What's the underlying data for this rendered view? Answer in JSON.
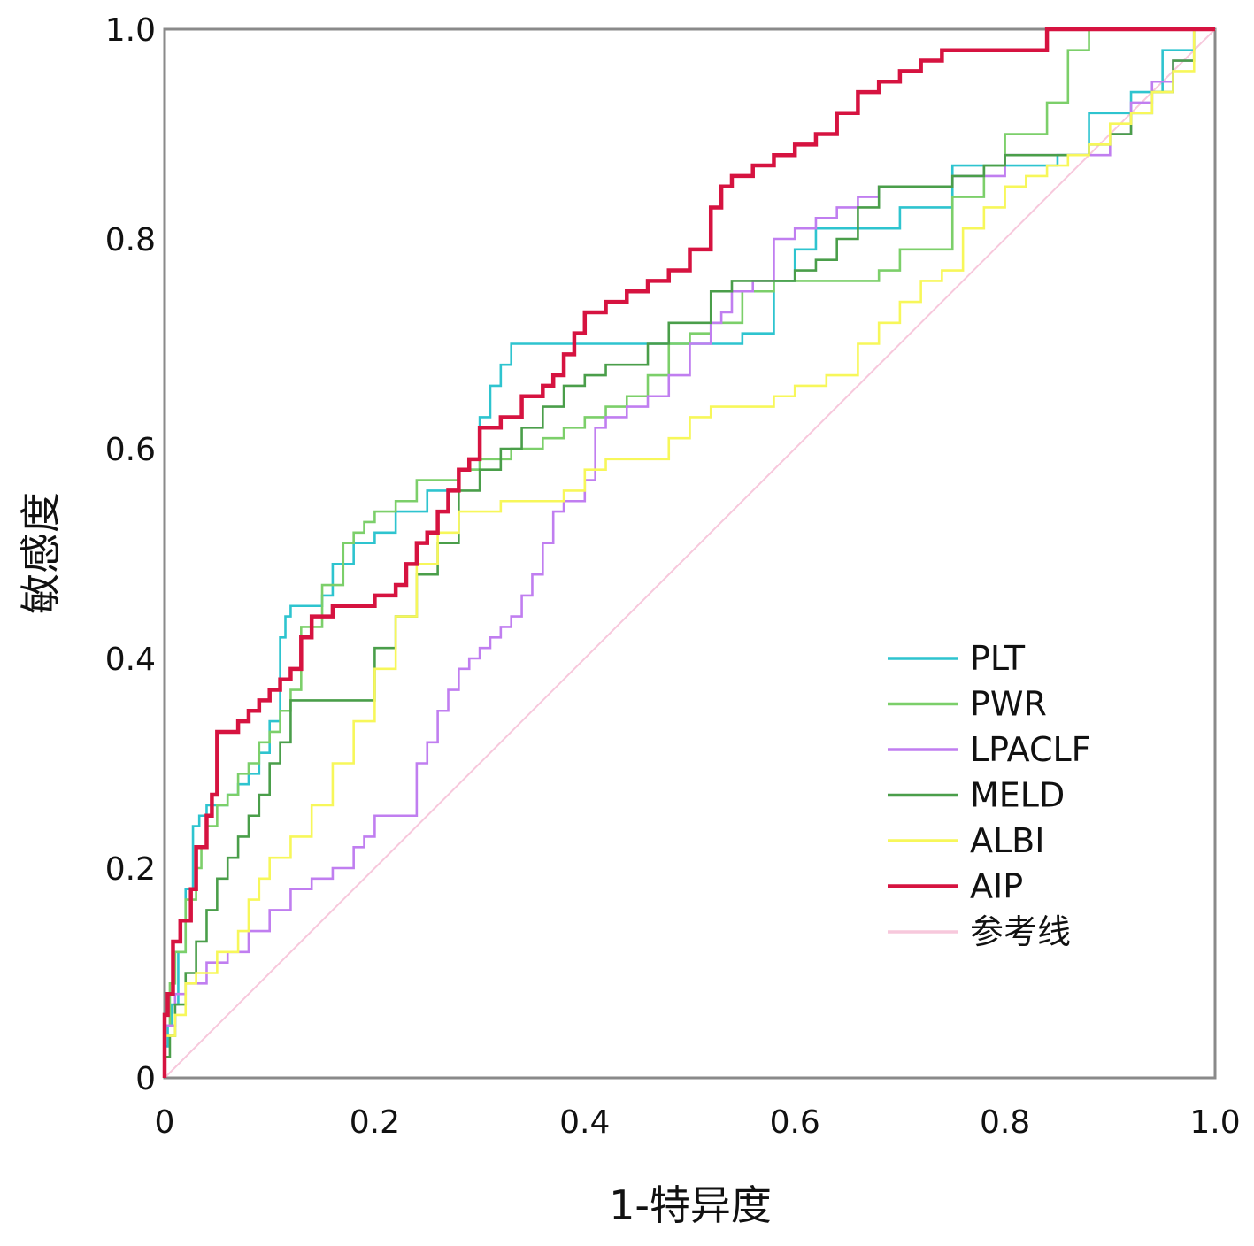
{
  "chart_data": {
    "type": "line",
    "title": "",
    "xlabel": "1-特异度",
    "ylabel": "敏感度",
    "xlim": [
      0,
      1
    ],
    "ylim": [
      0,
      1
    ],
    "grid": false,
    "legend_position": "lower-right",
    "x_tick_labels": [
      "0",
      "0.2",
      "0.4",
      "0.6",
      "0.8",
      "1.0"
    ],
    "y_tick_labels": [
      "0",
      "0.2",
      "0.4",
      "0.6",
      "0.8",
      "1.0"
    ],
    "series": [
      {
        "name": "PLT",
        "color": "#2ec4cf",
        "x": [
          0,
          0.003,
          0.007,
          0.013,
          0.02,
          0.027,
          0.033,
          0.04,
          0.05,
          0.06,
          0.07,
          0.08,
          0.09,
          0.1,
          0.11,
          0.115,
          0.12,
          0.13,
          0.14,
          0.15,
          0.16,
          0.18,
          0.2,
          0.22,
          0.25,
          0.28,
          0.3,
          0.31,
          0.32,
          0.33,
          0.34,
          0.38,
          0.45,
          0.5,
          0.55,
          0.58,
          0.6,
          0.62,
          0.65,
          0.67,
          0.7,
          0.75,
          0.8,
          0.85,
          0.88,
          0.9,
          0.92,
          0.95,
          0.98,
          1.0
        ],
        "y": [
          0,
          0.03,
          0.05,
          0.07,
          0.12,
          0.18,
          0.24,
          0.25,
          0.26,
          0.26,
          0.27,
          0.28,
          0.29,
          0.31,
          0.34,
          0.42,
          0.44,
          0.45,
          0.45,
          0.45,
          0.46,
          0.49,
          0.51,
          0.52,
          0.54,
          0.56,
          0.58,
          0.63,
          0.66,
          0.68,
          0.7,
          0.7,
          0.7,
          0.7,
          0.7,
          0.71,
          0.76,
          0.79,
          0.81,
          0.81,
          0.81,
          0.83,
          0.87,
          0.87,
          0.88,
          0.92,
          0.92,
          0.94,
          0.98,
          1.0
        ]
      },
      {
        "name": "PWR",
        "color": "#7ccf6a",
        "x": [
          0,
          0.005,
          0.01,
          0.02,
          0.03,
          0.035,
          0.04,
          0.05,
          0.06,
          0.07,
          0.08,
          0.09,
          0.1,
          0.11,
          0.12,
          0.13,
          0.15,
          0.17,
          0.18,
          0.19,
          0.2,
          0.22,
          0.24,
          0.26,
          0.28,
          0.3,
          0.33,
          0.36,
          0.38,
          0.4,
          0.42,
          0.44,
          0.46,
          0.48,
          0.5,
          0.52,
          0.55,
          0.58,
          0.6,
          0.65,
          0.68,
          0.7,
          0.75,
          0.78,
          0.8,
          0.84,
          0.86,
          0.88,
          0.89,
          0.9,
          1.0
        ],
        "y": [
          0,
          0.05,
          0.09,
          0.12,
          0.17,
          0.2,
          0.22,
          0.24,
          0.26,
          0.27,
          0.29,
          0.3,
          0.32,
          0.33,
          0.35,
          0.37,
          0.43,
          0.47,
          0.51,
          0.52,
          0.53,
          0.54,
          0.55,
          0.57,
          0.57,
          0.58,
          0.59,
          0.6,
          0.61,
          0.62,
          0.63,
          0.64,
          0.65,
          0.67,
          0.7,
          0.71,
          0.72,
          0.75,
          0.76,
          0.76,
          0.76,
          0.77,
          0.79,
          0.84,
          0.87,
          0.9,
          0.93,
          0.98,
          1.0,
          1.0,
          1.0
        ]
      },
      {
        "name": "LPACLF",
        "color": "#c07ef0",
        "x": [
          0,
          0.01,
          0.02,
          0.04,
          0.06,
          0.08,
          0.1,
          0.12,
          0.14,
          0.16,
          0.18,
          0.19,
          0.2,
          0.22,
          0.24,
          0.25,
          0.26,
          0.27,
          0.28,
          0.29,
          0.3,
          0.31,
          0.32,
          0.33,
          0.34,
          0.35,
          0.36,
          0.37,
          0.38,
          0.39,
          0.4,
          0.41,
          0.42,
          0.43,
          0.44,
          0.46,
          0.48,
          0.5,
          0.52,
          0.53,
          0.54,
          0.56,
          0.58,
          0.6,
          0.62,
          0.64,
          0.66,
          0.68,
          0.7,
          0.75,
          0.8,
          0.85,
          0.9,
          0.92,
          0.94,
          0.96,
          0.98,
          1.0
        ],
        "y": [
          0,
          0.05,
          0.08,
          0.09,
          0.11,
          0.12,
          0.14,
          0.16,
          0.18,
          0.19,
          0.2,
          0.22,
          0.23,
          0.25,
          0.25,
          0.3,
          0.32,
          0.35,
          0.37,
          0.39,
          0.4,
          0.41,
          0.42,
          0.43,
          0.44,
          0.46,
          0.48,
          0.51,
          0.54,
          0.55,
          0.55,
          0.57,
          0.62,
          0.63,
          0.63,
          0.64,
          0.65,
          0.67,
          0.7,
          0.72,
          0.73,
          0.75,
          0.76,
          0.8,
          0.81,
          0.82,
          0.83,
          0.84,
          0.85,
          0.85,
          0.86,
          0.88,
          0.88,
          0.9,
          0.93,
          0.95,
          0.97,
          1.0
        ]
      },
      {
        "name": "MELD",
        "color": "#4a9e4a",
        "x": [
          0,
          0.005,
          0.01,
          0.02,
          0.03,
          0.04,
          0.05,
          0.06,
          0.07,
          0.08,
          0.09,
          0.1,
          0.11,
          0.12,
          0.13,
          0.15,
          0.2,
          0.22,
          0.24,
          0.26,
          0.28,
          0.3,
          0.32,
          0.34,
          0.36,
          0.38,
          0.4,
          0.42,
          0.44,
          0.46,
          0.48,
          0.5,
          0.52,
          0.54,
          0.56,
          0.58,
          0.6,
          0.62,
          0.64,
          0.66,
          0.68,
          0.7,
          0.75,
          0.78,
          0.8,
          0.82,
          0.84,
          0.86,
          0.88,
          0.9,
          0.92,
          0.94,
          0.96,
          0.98,
          1.0
        ],
        "y": [
          0,
          0.02,
          0.04,
          0.07,
          0.1,
          0.13,
          0.16,
          0.19,
          0.21,
          0.23,
          0.25,
          0.27,
          0.3,
          0.32,
          0.36,
          0.36,
          0.36,
          0.41,
          0.44,
          0.48,
          0.51,
          0.56,
          0.58,
          0.6,
          0.62,
          0.64,
          0.66,
          0.67,
          0.68,
          0.68,
          0.7,
          0.72,
          0.72,
          0.75,
          0.76,
          0.76,
          0.76,
          0.77,
          0.78,
          0.8,
          0.83,
          0.85,
          0.85,
          0.86,
          0.87,
          0.88,
          0.88,
          0.88,
          0.88,
          0.89,
          0.9,
          0.92,
          0.94,
          0.97,
          1.0
        ]
      },
      {
        "name": "ALBI",
        "color": "#f7f75a",
        "x": [
          0,
          0.01,
          0.02,
          0.03,
          0.05,
          0.07,
          0.08,
          0.09,
          0.1,
          0.12,
          0.14,
          0.16,
          0.18,
          0.2,
          0.22,
          0.24,
          0.26,
          0.28,
          0.3,
          0.32,
          0.35,
          0.38,
          0.4,
          0.42,
          0.44,
          0.46,
          0.48,
          0.5,
          0.52,
          0.54,
          0.56,
          0.58,
          0.6,
          0.63,
          0.66,
          0.68,
          0.7,
          0.72,
          0.74,
          0.76,
          0.78,
          0.8,
          0.82,
          0.84,
          0.86,
          0.88,
          0.9,
          0.92,
          0.94,
          0.96,
          0.98,
          1.0
        ],
        "y": [
          0,
          0.04,
          0.06,
          0.09,
          0.1,
          0.12,
          0.14,
          0.17,
          0.19,
          0.21,
          0.23,
          0.26,
          0.3,
          0.34,
          0.39,
          0.44,
          0.49,
          0.52,
          0.54,
          0.54,
          0.55,
          0.55,
          0.56,
          0.58,
          0.59,
          0.59,
          0.59,
          0.61,
          0.63,
          0.64,
          0.64,
          0.64,
          0.65,
          0.66,
          0.67,
          0.7,
          0.72,
          0.74,
          0.76,
          0.77,
          0.81,
          0.83,
          0.85,
          0.86,
          0.87,
          0.88,
          0.89,
          0.91,
          0.92,
          0.94,
          0.96,
          1.0
        ]
      },
      {
        "name": "AIP",
        "color": "#d61340",
        "x": [
          0,
          0.003,
          0.008,
          0.015,
          0.025,
          0.03,
          0.04,
          0.045,
          0.05,
          0.06,
          0.07,
          0.08,
          0.09,
          0.1,
          0.11,
          0.12,
          0.13,
          0.14,
          0.15,
          0.16,
          0.17,
          0.18,
          0.2,
          0.22,
          0.23,
          0.24,
          0.25,
          0.26,
          0.27,
          0.28,
          0.29,
          0.3,
          0.32,
          0.34,
          0.36,
          0.37,
          0.38,
          0.39,
          0.4,
          0.42,
          0.44,
          0.46,
          0.48,
          0.5,
          0.52,
          0.53,
          0.54,
          0.56,
          0.58,
          0.6,
          0.62,
          0.64,
          0.66,
          0.68,
          0.7,
          0.72,
          0.74,
          0.76,
          0.78,
          0.8,
          0.84,
          0.88,
          0.9,
          0.92,
          0.95,
          1.0
        ],
        "y": [
          0,
          0.06,
          0.08,
          0.13,
          0.15,
          0.18,
          0.22,
          0.25,
          0.27,
          0.33,
          0.33,
          0.34,
          0.35,
          0.36,
          0.37,
          0.38,
          0.39,
          0.42,
          0.44,
          0.44,
          0.45,
          0.45,
          0.45,
          0.46,
          0.47,
          0.49,
          0.51,
          0.52,
          0.54,
          0.56,
          0.58,
          0.59,
          0.62,
          0.63,
          0.65,
          0.66,
          0.67,
          0.69,
          0.71,
          0.73,
          0.74,
          0.75,
          0.76,
          0.77,
          0.79,
          0.83,
          0.85,
          0.86,
          0.87,
          0.88,
          0.89,
          0.9,
          0.92,
          0.94,
          0.95,
          0.96,
          0.97,
          0.98,
          0.98,
          0.98,
          0.98,
          1.0,
          1.0,
          1.0,
          1.0,
          1.0
        ]
      },
      {
        "name": "参考线",
        "color": "#f7c8dc",
        "x": [
          0,
          1
        ],
        "y": [
          0,
          1
        ]
      }
    ]
  }
}
